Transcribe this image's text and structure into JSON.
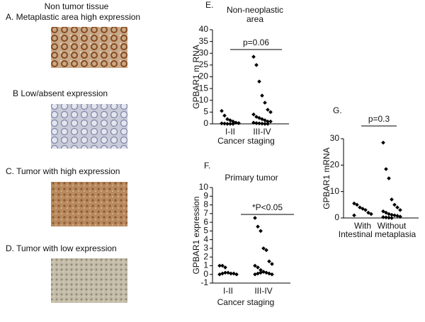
{
  "header": "Non tumor tissue",
  "images": [
    {
      "label": "A.  Metaplastic area high expression"
    },
    {
      "label": "B  Low/absent expression"
    },
    {
      "label": "C. Tumor with  high expression"
    },
    {
      "label": "D. Tumor with  low expression"
    }
  ],
  "chart_data": [
    {
      "type": "strip",
      "panel": "E.",
      "title_lines": [
        "Non-neoplastic",
        "area"
      ],
      "ylabel": "GPBAR1 m RNA",
      "xlabel": "Cancer staging",
      "annotation": "p=0.06",
      "categories": [
        "I-II",
        "III-IV"
      ],
      "values": [
        [
          5.5,
          3.5,
          2,
          1.5,
          1,
          0.5,
          0.3,
          0.2,
          0.1,
          0,
          0,
          0
        ],
        [
          28.5,
          25,
          18,
          12,
          9,
          6,
          5,
          4,
          3,
          2.5,
          2,
          1.5,
          1,
          1,
          0.5,
          0.3,
          0.2,
          0.1,
          0,
          0
        ]
      ],
      "color": "#000000",
      "ylim": [
        0,
        40
      ],
      "yticks": [
        0,
        5,
        10,
        15,
        20,
        25,
        30,
        35,
        40
      ]
    },
    {
      "type": "strip",
      "panel": "F.",
      "title_lines": [
        "Primary tumor"
      ],
      "ylabel": "GPBAR1 expression",
      "xlabel": "Cancer staging",
      "annotation": "*P<0.05",
      "categories": [
        "I-II",
        "III-IV"
      ],
      "values": [
        [
          1,
          1,
          0.8,
          0.2,
          0.1,
          0.1,
          0,
          0,
          0.1,
          0.2
        ],
        [
          6.5,
          5.5,
          5,
          3,
          2.8,
          1.5,
          1.2,
          1,
          0.8,
          0.5,
          0.3,
          0.2,
          0.1,
          0,
          0,
          0.1,
          0.2,
          0.3
        ]
      ],
      "color": "#000000",
      "ylim": [
        -1,
        10
      ],
      "yticks": [
        -1,
        0,
        1,
        2,
        3,
        4,
        5,
        6,
        7,
        8,
        9,
        10
      ]
    },
    {
      "type": "strip",
      "panel": "G.",
      "title_lines": [],
      "ylabel": "GPBAR1 mRNA",
      "xlabel": "Intestinal  metaplasia",
      "annotation": "p=0.3",
      "categories": [
        "With",
        "Without"
      ],
      "values": [
        [
          5.5,
          5,
          4,
          3.5,
          3,
          2,
          1.5,
          1
        ],
        [
          28.5,
          18.5,
          15,
          7,
          5,
          4,
          3,
          2.5,
          2,
          1.5,
          1.2,
          1,
          0.8,
          0.5,
          0.3,
          0.2,
          0.1,
          0
        ]
      ],
      "color": "#000000",
      "ylim": [
        0,
        30
      ],
      "yticks": [
        0,
        10,
        20,
        30
      ]
    }
  ]
}
